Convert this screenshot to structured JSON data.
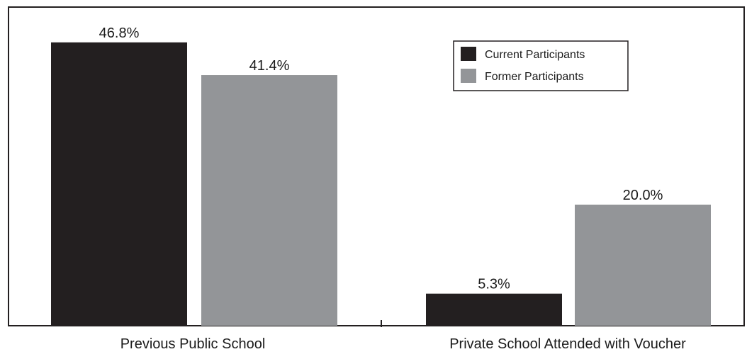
{
  "chart_data": {
    "type": "bar",
    "categories": [
      "Previous Public School",
      "Private School Attended with Voucher"
    ],
    "series": [
      {
        "name": "Current Participants",
        "values": [
          46.8,
          5.3
        ],
        "labels": [
          "46.8%",
          "5.3%"
        ],
        "color": "#231f20"
      },
      {
        "name": "Former Participants",
        "values": [
          41.4,
          20.0
        ],
        "labels": [
          "41.4%",
          "20.0%"
        ],
        "color": "#939598"
      }
    ],
    "ylim": [
      0,
      50
    ],
    "grid": false,
    "legend_position": "top-right",
    "title": "",
    "xlabel": "",
    "ylabel": ""
  }
}
